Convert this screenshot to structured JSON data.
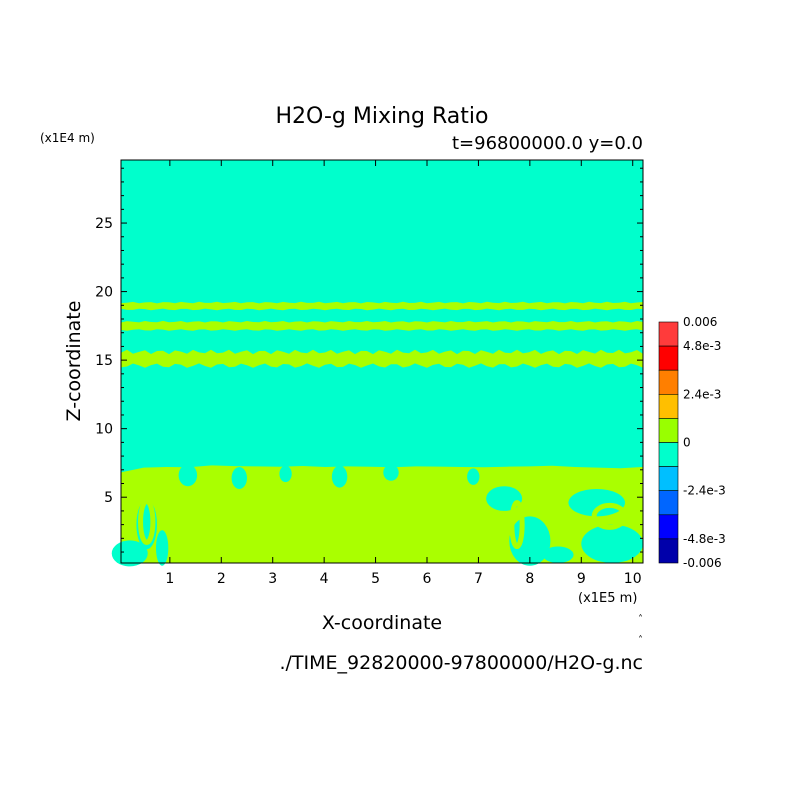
{
  "chart_data": {
    "type": "heatmap",
    "title": "H2O-g Mixing Ratio",
    "subtitle": "t=96800000.0 y=0.0",
    "xlabel": "X-coordinate",
    "ylabel": "Z-coordinate",
    "x_units": "(x1E5 m)",
    "y_units": "(x1E4 m)",
    "xlim": [
      0.05,
      10.2
    ],
    "ylim": [
      0.2,
      29.6
    ],
    "x_ticks": [
      1,
      2,
      3,
      4,
      5,
      6,
      7,
      8,
      9,
      10
    ],
    "y_ticks": [
      5,
      10,
      15,
      20,
      25
    ],
    "x_tick_labels": [
      "1",
      "2",
      "3",
      "4",
      "5",
      "6",
      "7",
      "8",
      "9",
      "10"
    ],
    "y_tick_labels": [
      "5",
      "10",
      "15",
      "20",
      "25"
    ],
    "background_level": "0 to -1.2e-3 (cyan)",
    "features": [
      {
        "kind": "band",
        "z_min": 18.7,
        "z_max": 19.2,
        "level": "0 to 1.2e-3"
      },
      {
        "kind": "band",
        "z_min": 17.2,
        "z_max": 17.8,
        "level": "0 to 1.2e-3"
      },
      {
        "kind": "band",
        "z_min": 14.6,
        "z_max": 15.6,
        "level": "0 to 1.2e-3"
      },
      {
        "kind": "region",
        "z_min": 0.2,
        "z_max": 7.6,
        "level": "0 to 1.2e-3",
        "description_level_only": true
      }
    ],
    "colorbar": {
      "labels": [
        "0.006",
        "4.8e-3",
        "2.4e-3",
        "0",
        "-2.4e-3",
        "-4.8e-3",
        "-0.006"
      ],
      "colors_top_to_bottom": [
        "#ff3b3b",
        "#ff0000",
        "#ff7f00",
        "#ffbf00",
        "#99ff00",
        "#00ffcc",
        "#00bfff",
        "#0066ff",
        "#0000ff",
        "#0000aa"
      ],
      "range": [
        -0.006,
        0.006
      ]
    },
    "colors": {
      "background": "#00ffcc",
      "positive_small": "#aaff00"
    }
  },
  "footer": {
    "file_path": "./TIME_92820000-97800000/H2O-g.nc"
  }
}
